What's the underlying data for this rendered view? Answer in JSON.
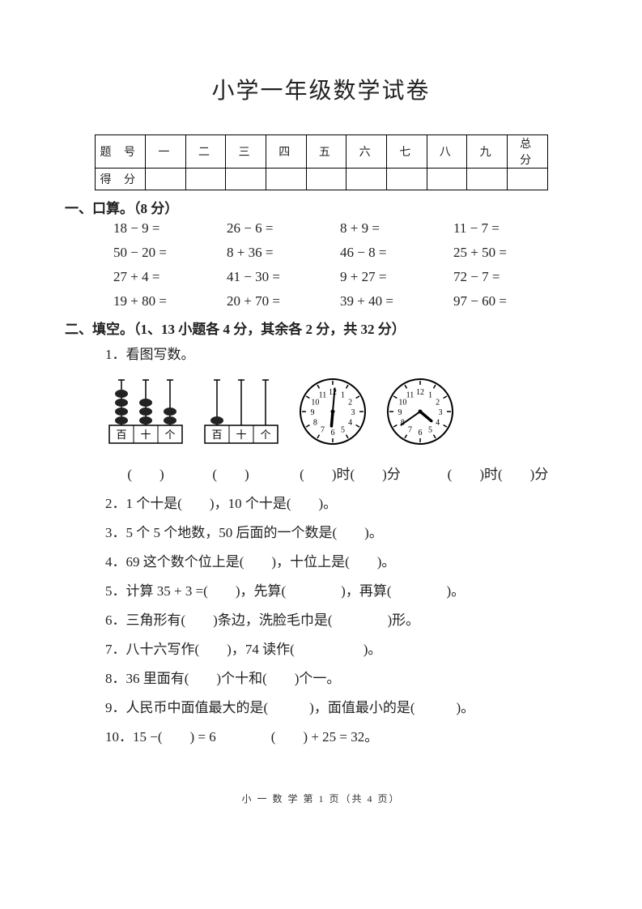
{
  "title": "小学一年级数学试卷",
  "scoreTable": {
    "row1Label": "题 号",
    "row2Label": "得 分",
    "cols": [
      "一",
      "二",
      "三",
      "四",
      "五",
      "六",
      "七",
      "八",
      "九",
      "总 分"
    ]
  },
  "section1": {
    "heading": "一、口算。（8 分）",
    "rows": [
      [
        "18 − 9 =",
        "26 − 6 =",
        "8 + 9 =",
        "11 − 7 ="
      ],
      [
        "50 − 20 =",
        "8 + 36 =",
        "46 − 8 =",
        "25 + 50 ="
      ],
      [
        "27 + 4 =",
        "41 − 30 =",
        "9 + 27 =",
        "72 − 7 ="
      ],
      [
        "19 + 80 =",
        "20 + 70 =",
        "39 + 40 =",
        "97 − 60 ="
      ]
    ]
  },
  "section2": {
    "heading": "二、填空。（1、13 小题各 4 分，其余各 2 分，共 32 分）",
    "q1Label": "1．看图写数。",
    "abacus1": {
      "columns": [
        4,
        3,
        2
      ],
      "labels": [
        "百",
        "十",
        "个"
      ]
    },
    "abacus2": {
      "columns": [
        1,
        0,
        0
      ],
      "labels": [
        "百",
        "十",
        "个"
      ]
    },
    "clock1": {
      "hourAngle": 185,
      "minuteAngle": 5,
      "numbers": [
        "12",
        "1",
        "2",
        "3",
        "4",
        "5",
        "6",
        "7",
        "8",
        "9",
        "10",
        "11"
      ]
    },
    "clock2": {
      "hourAngle": 130,
      "minuteAngle": 235,
      "numbers": [
        "12",
        "1",
        "2",
        "3",
        "4",
        "5",
        "6",
        "7",
        "8",
        "9",
        "10",
        "11"
      ]
    },
    "answerRow": {
      "a1": "(　　)",
      "a2": "(　　)",
      "a3": "(　　)时(　　)分",
      "a4": "(　　)时(　　)分"
    },
    "items": [
      "2．1 个十是(　　)，10 个十是(　　)。",
      "3．5 个 5 个地数，50 后面的一个数是(　　)。",
      "4．69 这个数个位上是(　　)，十位上是(　　)。",
      "5．计算 35 + 3 =(　　)，先算(　　　　)，再算(　　　　)。",
      "6．三角形有(　　)条边，洗脸毛巾是(　　　　)形。",
      "7．八十六写作(　　)，74 读作(　　　　　)。",
      "8．36 里面有(　　)个十和(　　)个一。",
      "9．人民币中面值最大的是(　　　)，面值最小的是(　　　)。",
      "10．15 −(　　) = 6　　　　(　　) + 25 = 32。"
    ]
  },
  "footer": "小 一 数 学 第 1 页（共 4 页）",
  "style": {
    "background_color": "#ffffff",
    "text_color": "#222222",
    "title_fontsize": 28,
    "body_fontsize": 17,
    "footer_fontsize": 12,
    "table_border_color": "#000000",
    "clock_size": 90,
    "abacus_bead_fill": "#222222",
    "abacus_rod_stroke": "#000000"
  }
}
